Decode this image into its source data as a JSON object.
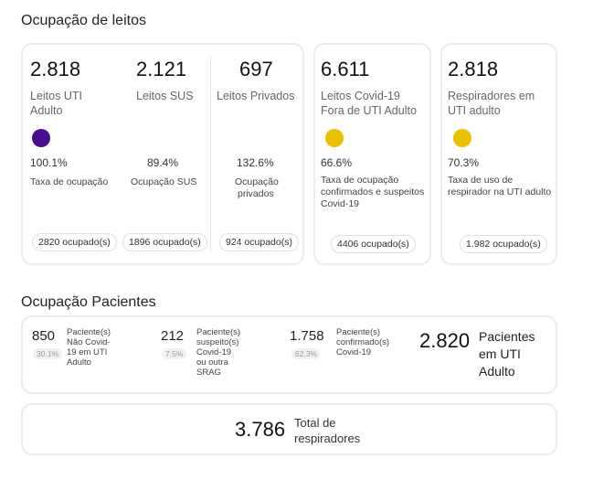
{
  "leitos": {
    "title": "Ocupação de leitos",
    "uti_adulto": {
      "value": "2.818",
      "label1": "Leitos UTI",
      "label2": "Adulto",
      "pct": "100.1%",
      "pct_label": "Taxa de ocupação",
      "pill": "2820 ocupado(s)",
      "dot_color": "#4a0f8f"
    },
    "sus": {
      "value": "2.121",
      "label": "Leitos SUS",
      "pct": "89.4%",
      "pct_label": "Ocupação SUS",
      "pill": "1896 ocupado(s)"
    },
    "privados": {
      "value": "697",
      "label": "Leitos Privados",
      "pct": "132.6%",
      "pct_label1": "Ocupação",
      "pct_label2": "privados",
      "pill": "924 ocupado(s)"
    },
    "covid": {
      "value": "6.611",
      "label1": "Leitos Covid-19",
      "label2": "Fora de UTI Adulto",
      "pct": "66.6%",
      "pct_label1": "Taxa de ocupação",
      "pct_label2": "confirmados e suspeitos",
      "pct_label3": "Covid-19",
      "pill": "4406 ocupado(s)",
      "dot_color": "#e8c100"
    },
    "respiradores": {
      "value": "2.818",
      "label1": "Respiradores em",
      "label2": "UTI adulto",
      "pct": "70.3%",
      "pct_label1": "Taxa de uso de",
      "pct_label2": "respirador na UTI adulto",
      "pill": "1.982 ocupado(s)",
      "dot_color": "#e8c100"
    }
  },
  "pacientes": {
    "title": "Ocupação Pacientes",
    "nao_covid": {
      "value": "850",
      "pct": "30.1%",
      "l1": "Paciente(s)",
      "l2": "Não Covid-",
      "l3": "19 em UTI",
      "l4": "Adulto"
    },
    "suspeitos": {
      "value": "212",
      "pct": "7.5%",
      "l1": "Paciente(s)",
      "l2": "suspeito(s)",
      "l3": "Covid-19",
      "l4": "ou outra",
      "l5": "SRAG"
    },
    "confirmados": {
      "value": "1.758",
      "pct": "62.3%",
      "l1": "Paciente(s)",
      "l2": "confirmado(s)",
      "l3": "Covid-19"
    },
    "total": {
      "value": "2.820",
      "l1": "Pacientes",
      "l2": "em UTI",
      "l3": "Adulto"
    }
  },
  "respiradores_total": {
    "value": "3.786",
    "l1": "Total de",
    "l2": "respiradores"
  }
}
